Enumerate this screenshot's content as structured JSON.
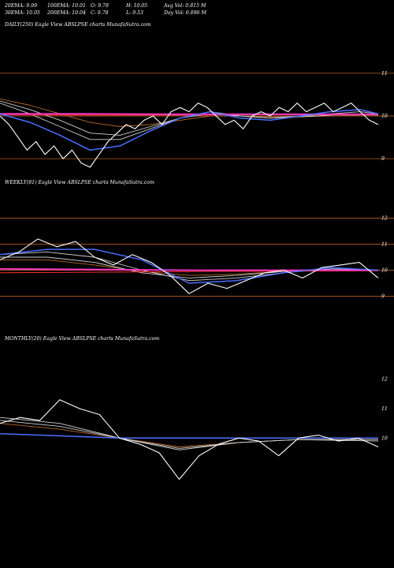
{
  "header": {
    "row1": [
      "20EMA: 9.99",
      "100EMA: 10.01",
      "O: 9.78",
      "H: 10.05",
      "Avg Vol: 0.815 M"
    ],
    "row2": [
      "30EMA: 10.05",
      "200EMA: 10.04",
      "C: 9.78",
      "L: 9.53",
      "Day Vol: 0.096  M"
    ]
  },
  "chart_data": [
    {
      "type": "line",
      "title": "DAILY(250) Eagle   View  ABSLPSE charts MunafaSutra.com",
      "ylim": [
        8.8,
        11.2
      ],
      "yticks": [
        "11",
        "10",
        "9"
      ],
      "hlines": [
        11,
        10,
        9
      ],
      "series": [
        {
          "role": "price",
          "color": "#ffffff",
          "x": [
            0,
            6,
            12,
            18,
            24,
            30,
            36,
            42,
            48,
            54,
            60,
            66,
            72,
            78,
            84,
            90,
            96,
            102,
            108,
            114,
            120,
            126,
            132,
            138,
            144,
            150,
            156,
            162,
            168,
            174,
            180,
            186,
            192,
            198,
            204,
            210,
            216,
            222,
            228,
            234,
            240,
            246,
            252
          ],
          "values": [
            10.0,
            9.8,
            9.5,
            9.2,
            9.4,
            9.1,
            9.3,
            9.0,
            9.2,
            8.9,
            8.8,
            9.1,
            9.4,
            9.6,
            9.8,
            9.7,
            9.9,
            10.0,
            9.8,
            10.1,
            10.2,
            10.1,
            10.3,
            10.2,
            10.0,
            9.8,
            9.9,
            9.7,
            10.0,
            10.1,
            10.0,
            10.2,
            10.1,
            10.3,
            10.1,
            10.2,
            10.3,
            10.1,
            10.2,
            10.3,
            10.1,
            9.9,
            9.8
          ]
        },
        {
          "role": "ema-blue",
          "color": "#4a6fff",
          "x": [
            0,
            20,
            40,
            60,
            80,
            100,
            120,
            140,
            160,
            180,
            200,
            220,
            240,
            252
          ],
          "values": [
            10.05,
            9.85,
            9.55,
            9.2,
            9.3,
            9.65,
            9.95,
            10.1,
            9.95,
            9.9,
            10.0,
            10.1,
            10.15,
            10.05
          ]
        },
        {
          "role": "ema-grey-1",
          "color": "#cfcfcf",
          "x": [
            0,
            20,
            40,
            60,
            80,
            100,
            120,
            140,
            160,
            180,
            200,
            220,
            240,
            252
          ],
          "values": [
            10.3,
            10.05,
            9.75,
            9.45,
            9.45,
            9.7,
            9.95,
            10.1,
            10.0,
            9.95,
            10.0,
            10.05,
            10.1,
            10.05
          ]
        },
        {
          "role": "ema-grey-2",
          "color": "#cfcfcf",
          "x": [
            0,
            20,
            40,
            60,
            80,
            100,
            120,
            140,
            160,
            180,
            200,
            220,
            240,
            252
          ],
          "values": [
            10.35,
            10.15,
            9.9,
            9.6,
            9.55,
            9.75,
            9.95,
            10.05,
            10.0,
            9.95,
            9.98,
            10.02,
            10.05,
            10.02
          ]
        },
        {
          "role": "ema-brown",
          "color": "#b86a2c",
          "x": [
            0,
            20,
            40,
            60,
            80,
            100,
            120,
            140,
            160,
            180,
            200,
            220,
            240,
            252
          ],
          "values": [
            10.4,
            10.25,
            10.05,
            9.85,
            9.75,
            9.8,
            9.9,
            10.0,
            10.0,
            9.98,
            9.98,
            10.0,
            10.02,
            10.02
          ]
        },
        {
          "role": "ema-magenta",
          "color": "#ff36d0",
          "x": [
            0,
            60,
            120,
            180,
            252
          ],
          "values": [
            10.05,
            10.05,
            10.04,
            10.04,
            10.04
          ]
        },
        {
          "role": "ema-red",
          "color": "#ff3030",
          "x": [
            0,
            60,
            120,
            180,
            252
          ],
          "values": [
            10.03,
            10.02,
            10.02,
            10.03,
            10.03
          ]
        }
      ]
    },
    {
      "type": "line",
      "title": "WEEKLY(81) Eagle   View  ABSLPSE charts MunafaSutra.com",
      "ylim": [
        8.5,
        12.5
      ],
      "yticks": [
        "12",
        "11",
        "10",
        "9"
      ],
      "hlines": [
        12,
        11,
        10,
        9
      ],
      "series": [
        {
          "role": "price",
          "color": "#ffffff",
          "x": [
            0,
            4,
            8,
            12,
            16,
            20,
            24,
            28,
            32,
            36,
            40,
            44,
            48,
            52,
            56,
            60,
            64,
            68,
            72,
            76,
            80
          ],
          "values": [
            10.4,
            10.7,
            11.2,
            10.9,
            11.1,
            10.5,
            10.2,
            10.6,
            10.3,
            9.8,
            9.1,
            9.5,
            9.3,
            9.6,
            9.9,
            10.0,
            9.7,
            10.1,
            10.2,
            10.3,
            9.7
          ]
        },
        {
          "role": "ema-blue",
          "color": "#4a6fff",
          "x": [
            0,
            10,
            20,
            30,
            40,
            50,
            60,
            70,
            80
          ],
          "values": [
            10.6,
            10.8,
            10.8,
            10.4,
            9.5,
            9.6,
            9.9,
            10.1,
            10.0
          ]
        },
        {
          "role": "ema-grey-1",
          "color": "#cfcfcf",
          "x": [
            0,
            10,
            20,
            30,
            40,
            50,
            60,
            70,
            80
          ],
          "values": [
            10.6,
            10.7,
            10.5,
            10.0,
            9.6,
            9.7,
            9.9,
            10.05,
            10.0
          ]
        },
        {
          "role": "ema-grey-2",
          "color": "#cfcfcf",
          "x": [
            0,
            10,
            20,
            30,
            40,
            50,
            60,
            70,
            80
          ],
          "values": [
            10.5,
            10.5,
            10.3,
            9.9,
            9.7,
            9.8,
            9.95,
            10.0,
            10.0
          ]
        },
        {
          "role": "ema-brown",
          "color": "#b86a2c",
          "x": [
            0,
            10,
            20,
            30,
            40,
            50,
            60,
            70,
            80
          ],
          "values": [
            10.4,
            10.4,
            10.2,
            9.95,
            9.8,
            9.85,
            9.95,
            10.0,
            10.0
          ]
        },
        {
          "role": "ema-magenta",
          "color": "#ff36d0",
          "x": [
            0,
            40,
            80
          ],
          "values": [
            10.05,
            10.0,
            10.0
          ]
        },
        {
          "role": "ema-red",
          "color": "#ff3030",
          "x": [
            0,
            40,
            80
          ],
          "values": [
            9.9,
            9.95,
            9.98
          ]
        }
      ]
    },
    {
      "type": "line",
      "title": "MONTHLY(20) Eagle   View  ABSLPSE charts MunafaSutra.com",
      "ylim": [
        8.0,
        12.5
      ],
      "yticks": [
        "12",
        "11",
        "10"
      ],
      "hlines": [],
      "series": [
        {
          "role": "price",
          "color": "#ffffff",
          "x": [
            0,
            1,
            2,
            3,
            4,
            5,
            6,
            7,
            8,
            9,
            10,
            11,
            12,
            13,
            14,
            15,
            16,
            17,
            18,
            19
          ],
          "values": [
            10.5,
            10.7,
            10.6,
            11.3,
            11.0,
            10.8,
            10.0,
            9.8,
            9.5,
            8.6,
            9.4,
            9.8,
            10.0,
            9.9,
            9.4,
            10.0,
            10.1,
            9.9,
            10.0,
            9.7
          ]
        },
        {
          "role": "ema-blue",
          "color": "#4a6fff",
          "x": [
            0,
            6,
            12,
            19
          ],
          "values": [
            10.15,
            10.0,
            10.0,
            10.0
          ]
        },
        {
          "role": "ema-grey-1",
          "color": "#cfcfcf",
          "x": [
            0,
            3,
            6,
            9,
            12,
            15,
            19
          ],
          "values": [
            10.7,
            10.5,
            10.0,
            9.6,
            9.85,
            9.95,
            9.9
          ]
        },
        {
          "role": "ema-grey-2",
          "color": "#cfcfcf",
          "x": [
            0,
            3,
            6,
            9,
            12,
            15,
            19
          ],
          "values": [
            10.6,
            10.4,
            10.0,
            9.65,
            9.85,
            9.95,
            9.95
          ]
        },
        {
          "role": "ema-brown",
          "color": "#b86a2c",
          "x": [
            0,
            3,
            6,
            9,
            12,
            15,
            19
          ],
          "values": [
            10.5,
            10.3,
            10.0,
            9.7,
            9.85,
            9.95,
            9.95
          ]
        }
      ]
    }
  ]
}
